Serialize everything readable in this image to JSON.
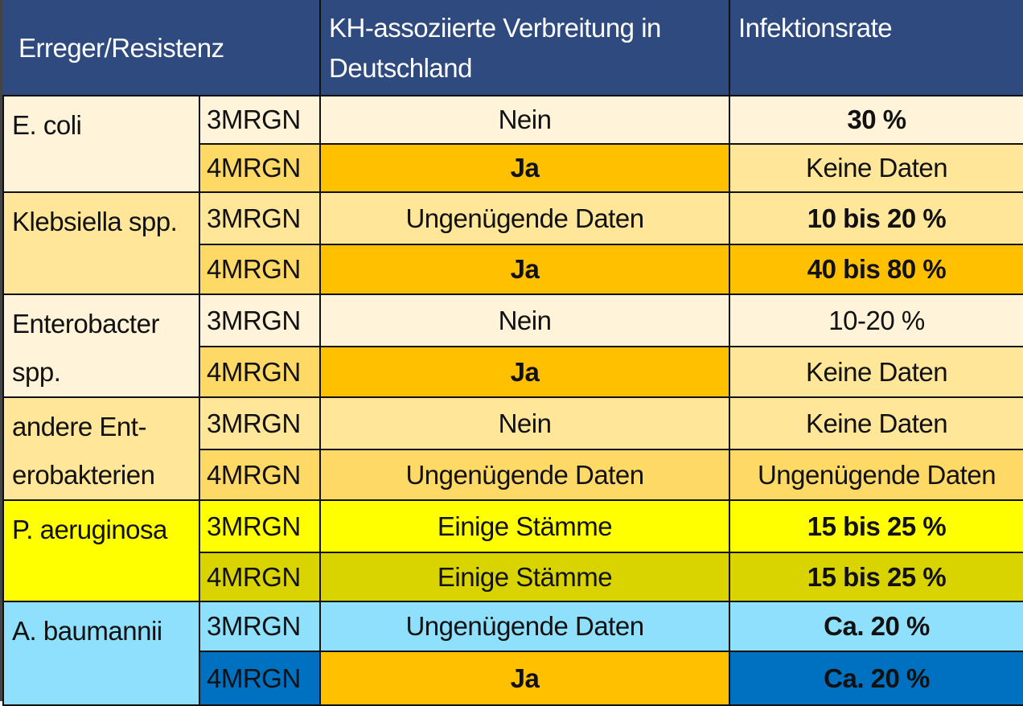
{
  "header": {
    "col1": "Erreger/Resistenz",
    "col2": "KH-assoziierte Verbreitung in Deutschland",
    "col3": "Infektionsrate"
  },
  "rows": [
    {
      "pathogen": "E. coli",
      "sub": [
        {
          "resistance": "3MRGN",
          "spread": "Nein",
          "rate": "30 %"
        },
        {
          "resistance": "4MRGN",
          "spread": "Ja",
          "rate": "Keine Daten"
        }
      ]
    },
    {
      "pathogen": "Klebsiella spp.",
      "sub": [
        {
          "resistance": "3MRGN",
          "spread": "Ungenügende Daten",
          "rate": "10 bis 20 %"
        },
        {
          "resistance": "4MRGN",
          "spread": "Ja",
          "rate": "40 bis 80 %"
        }
      ]
    },
    {
      "pathogen": "Enterobacter spp.",
      "sub": [
        {
          "resistance": "3MRGN",
          "spread": "Nein",
          "rate": "10-20 %"
        },
        {
          "resistance": "4MRGN",
          "spread": "Ja",
          "rate": "Keine Daten"
        }
      ]
    },
    {
      "pathogen": "andere Ent-erobakterien",
      "sub": [
        {
          "resistance": "3MRGN",
          "spread": "Nein",
          "rate": "Keine Daten"
        },
        {
          "resistance": "4MRGN",
          "spread": "Ungenügende Daten",
          "rate": "Ungenügende Daten"
        }
      ]
    },
    {
      "pathogen": "P. aeruginosa",
      "sub": [
        {
          "resistance": "3MRGN",
          "spread": "Einige Stämme",
          "rate": "15 bis 25 %"
        },
        {
          "resistance": "4MRGN",
          "spread": "Einige Stämme",
          "rate": "15 bis 25 %"
        }
      ]
    },
    {
      "pathogen": "A. baumannii",
      "sub": [
        {
          "resistance": "3MRGN",
          "spread": "Ungenügende Daten",
          "rate": "Ca. 20 %"
        },
        {
          "resistance": "4MRGN",
          "spread": "Ja",
          "rate": "Ca. 20 %"
        }
      ]
    }
  ],
  "colors": {
    "header": "#2f4a7e",
    "cream": "#fff4d9",
    "light": "#ffe699",
    "mid": "#ffd966",
    "orange": "#ffc000",
    "yellow": "#ffff00",
    "olive": "#d9d400",
    "light_blue": "#8ee0fc",
    "blue": "#0070c0"
  }
}
